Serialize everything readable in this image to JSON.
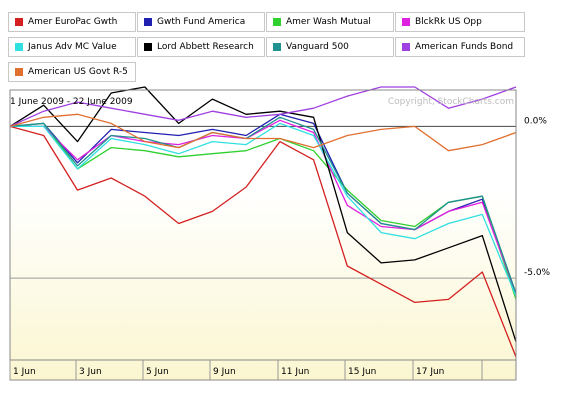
{
  "chart_data": {
    "type": "line",
    "title": "1 June 2009 - 22 June 2009",
    "watermark": "Copyright, StockCharts.com",
    "x_tick_labels": [
      "1 Jun",
      "3 Jun",
      "5 Jun",
      "9 Jun",
      "11 Jun",
      "15 Jun",
      "17 Jun"
    ],
    "y_tick_labels": [
      "0.0%",
      "-5.0%"
    ],
    "ylim": [
      -7.6,
      1.2
    ],
    "y_units": "percent change",
    "points_per_series": 16,
    "series": [
      {
        "name": "Amer EuroPac Gwth",
        "color": "#d42020",
        "values": [
          0,
          -0.3,
          -2.1,
          -1.7,
          -2.3,
          -3.2,
          -2.8,
          -2.0,
          -0.5,
          -1.1,
          -4.6,
          -5.2,
          -5.8,
          -5.7,
          -4.8,
          -7.6
        ]
      },
      {
        "name": "Gwth Fund America",
        "color": "#2020b0",
        "values": [
          0,
          0.1,
          -1.2,
          -0.1,
          -0.2,
          -0.3,
          -0.1,
          -0.3,
          0.4,
          0.1,
          -2.2,
          -3.2,
          -3.4,
          -2.8,
          -2.4,
          -5.6
        ]
      },
      {
        "name": "Amer Wash Mutual",
        "color": "#30d030",
        "values": [
          0,
          0.1,
          -1.4,
          -0.7,
          -0.8,
          -1.0,
          -0.9,
          -0.8,
          -0.4,
          -0.8,
          -2.1,
          -3.1,
          -3.3,
          -2.5,
          -2.3,
          -5.7
        ]
      },
      {
        "name": "BlckRk US Opp",
        "color": "#e020e0",
        "values": [
          0,
          0.0,
          -1.1,
          -0.3,
          -0.5,
          -0.6,
          -0.3,
          -0.4,
          0.2,
          -0.2,
          -2.6,
          -3.3,
          -3.4,
          -2.8,
          -2.5,
          -5.5
        ]
      },
      {
        "name": "Janus Adv MC Value",
        "color": "#30e0e0",
        "values": [
          0,
          0.0,
          -1.4,
          -0.4,
          -0.6,
          -0.9,
          -0.5,
          -0.6,
          0.1,
          -0.3,
          -2.3,
          -3.5,
          -3.7,
          -3.2,
          -2.9,
          -5.6
        ]
      },
      {
        "name": "Lord Abbett Research",
        "color": "#000000",
        "values": [
          0,
          0.7,
          -0.5,
          1.1,
          1.3,
          0.1,
          0.9,
          0.4,
          0.5,
          0.3,
          -3.5,
          -4.5,
          -4.4,
          -4.0,
          -3.6,
          -7.1
        ]
      },
      {
        "name": "Vanguard 500",
        "color": "#209090",
        "values": [
          0,
          0.1,
          -1.3,
          -0.3,
          -0.4,
          -0.7,
          -0.2,
          -0.4,
          0.3,
          -0.1,
          -2.2,
          -3.2,
          -3.4,
          -2.5,
          -2.3,
          -5.5
        ]
      },
      {
        "name": "American Funds Bond",
        "color": "#a040e0",
        "values": [
          0,
          0.5,
          0.8,
          0.6,
          0.4,
          0.2,
          0.5,
          0.3,
          0.4,
          0.6,
          1.0,
          1.3,
          1.3,
          0.6,
          0.9,
          1.3
        ]
      },
      {
        "name": "American US Govt R-5",
        "color": "#e07030",
        "values": [
          0,
          0.3,
          0.4,
          0.1,
          -0.5,
          -0.7,
          -0.2,
          -0.4,
          -0.4,
          -0.7,
          -0.3,
          -0.1,
          0.0,
          -0.8,
          -0.6,
          -0.2
        ]
      }
    ]
  }
}
